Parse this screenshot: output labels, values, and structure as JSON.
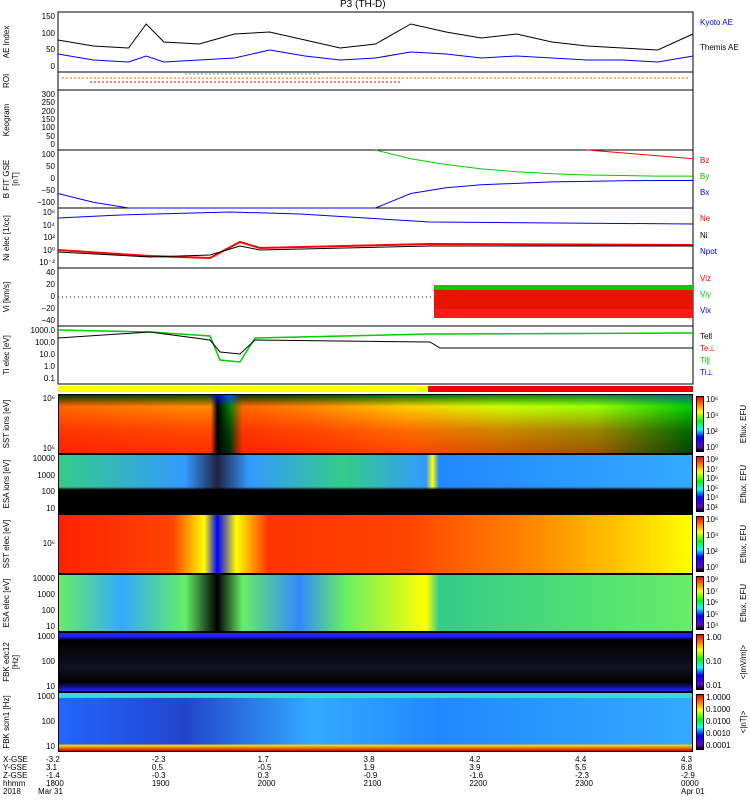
{
  "title": "P3 (TH-D)",
  "colors": {
    "red": "#ff0000",
    "green": "#00e000",
    "blue": "#0000ff",
    "black": "#000000"
  },
  "panels": {
    "ae": {
      "ylabel": "AE Index",
      "ticks": [
        "150",
        "100",
        "50",
        "0"
      ],
      "legend": [
        "Kyoto AE",
        "Themis AE"
      ]
    },
    "roi": {
      "ylabel": "ROI"
    },
    "keogram": {
      "ylabel": "Keogram",
      "ticks": [
        "300",
        "250",
        "200",
        "150",
        "100",
        "50",
        "0"
      ]
    },
    "bfit": {
      "ylabel": "B FIT GSE [nT]",
      "ticks": [
        "100",
        "50",
        "0",
        "−50",
        "−100"
      ],
      "legend": [
        "Bz",
        "By",
        "Bx"
      ]
    },
    "ni": {
      "ylabel": "Ni elec [1/cc]",
      "ticks": [
        "10⁶",
        "10⁴",
        "10²",
        "10⁰",
        "10⁻²"
      ],
      "legend": [
        "Ne",
        "Ni",
        "Npot"
      ]
    },
    "vi": {
      "ylabel": "Vi [km/s]",
      "ticks": [
        "40",
        "20",
        "0",
        "−20",
        "−40"
      ],
      "legend": [
        "Viz",
        "Viy",
        "Vix"
      ]
    },
    "ti": {
      "ylabel": "Ti elec [eV]",
      "ticks": [
        "1000.0",
        "100.0",
        "10.0",
        "1.0",
        "0.1"
      ],
      "legend": [
        "Tell",
        "Te⊥",
        "Ti∥",
        "Ti⊥"
      ]
    },
    "sst_ion": {
      "ylabel": "SST ions [eV]",
      "ticks": [
        "10⁶",
        "10⁵"
      ],
      "cbar": [
        "10⁶",
        "10⁴",
        "10²",
        "10⁰"
      ],
      "cbar_label": "Eflux, EFU"
    },
    "esa_ion": {
      "ylabel": "ESA ions [eV]",
      "ticks": [
        "10000",
        "1000",
        "100",
        "10"
      ],
      "cbar": [
        "10⁸",
        "10⁷",
        "10⁶",
        "10⁵",
        "10⁴",
        "10³"
      ],
      "cbar_label": "Eflux, EFU"
    },
    "sst_elec": {
      "ylabel": "SST elec [eV]",
      "ticks": [
        "10⁵"
      ],
      "cbar": [
        "10⁶",
        "10⁴",
        "10²",
        "10⁰"
      ],
      "cbar_label": "Eflux, EFU"
    },
    "esa_elec": {
      "ylabel": "ESA elec [eV]",
      "ticks": [
        "10000",
        "1000",
        "100",
        "10"
      ],
      "cbar": [
        "10⁸",
        "10⁷",
        "10⁶",
        "10⁵",
        "10⁴"
      ],
      "cbar_label": "Eflux, EFU"
    },
    "fbk_edc": {
      "ylabel": "FBK edc12 [Hz]",
      "ticks": [
        "1000",
        "100",
        "10"
      ],
      "cbar": [
        "1.00",
        "0.10",
        "0.01"
      ],
      "cbar_label": "<|mV/m|>"
    },
    "fbk_scm": {
      "ylabel": "FBK scm1 [Hz]",
      "ticks": [
        "1000",
        "100",
        "10"
      ],
      "cbar": [
        "1.0000",
        "0.1000",
        "0.0100",
        "0.0010",
        "0.0001"
      ],
      "cbar_label": "<|nT|>"
    }
  },
  "xaxis": {
    "row_labels": [
      "X-GSE",
      "Y-GSE",
      "Z-GSE",
      "hhmm",
      "2018"
    ],
    "columns": [
      {
        "x": "-3.2",
        "y": "3.1",
        "z": "-1.4",
        "hhmm": "1800",
        "date": "Mar 31"
      },
      {
        "x": "-2.3",
        "y": "0.5",
        "z": "-0.3",
        "hhmm": "1900",
        "date": ""
      },
      {
        "x": "1.7",
        "y": "-0.5",
        "z": "0.3",
        "hhmm": "2000",
        "date": ""
      },
      {
        "x": "3.8",
        "y": "1.9",
        "z": "-0.9",
        "hhmm": "2100",
        "date": ""
      },
      {
        "x": "4.2",
        "y": "3.9",
        "z": "-1.6",
        "hhmm": "2200",
        "date": ""
      },
      {
        "x": "4.4",
        "y": "5.5",
        "z": "-2.3",
        "hhmm": "2300",
        "date": ""
      },
      {
        "x": "4.3",
        "y": "6.8",
        "z": "-2.9",
        "hhmm": "0000",
        "date": "Apr 01"
      }
    ]
  },
  "chart_data": {
    "type": "line",
    "x_minutes": [
      0,
      20,
      40,
      50,
      60,
      80,
      100,
      120,
      140,
      160,
      180,
      200,
      220,
      240,
      260,
      280,
      300,
      320,
      340,
      360
    ],
    "series": [
      {
        "name": "Themis AE",
        "values": [
          80,
          65,
          60,
          120,
          75,
          70,
          95,
          100,
          80,
          60,
          70,
          120,
          100,
          85,
          95,
          75,
          65,
          60,
          55,
          95
        ]
      },
      {
        "name": "Kyoto AE",
        "values": [
          45,
          30,
          25,
          40,
          25,
          30,
          35,
          55,
          40,
          30,
          35,
          50,
          45,
          35,
          40,
          35,
          30,
          30,
          25,
          40
        ]
      },
      {
        "name": "Bx",
        "values": [
          -50,
          -80,
          -100,
          null,
          null,
          null,
          null,
          null,
          null,
          null,
          -100,
          -50,
          -30,
          -20,
          -15,
          -10,
          -8,
          -6,
          -5,
          -5
        ]
      },
      {
        "name": "By",
        "values": [
          null,
          null,
          null,
          null,
          null,
          null,
          null,
          null,
          null,
          null,
          100,
          70,
          50,
          35,
          25,
          18,
          14,
          12,
          10,
          10
        ]
      },
      {
        "name": "Bz",
        "values": [
          null,
          null,
          null,
          null,
          null,
          null,
          null,
          null,
          null,
          null,
          null,
          null,
          null,
          null,
          null,
          null,
          100,
          90,
          80,
          70
        ]
      }
    ],
    "xlabel": "hhmm",
    "ylabel": "",
    "xlim": [
      0,
      360
    ]
  }
}
